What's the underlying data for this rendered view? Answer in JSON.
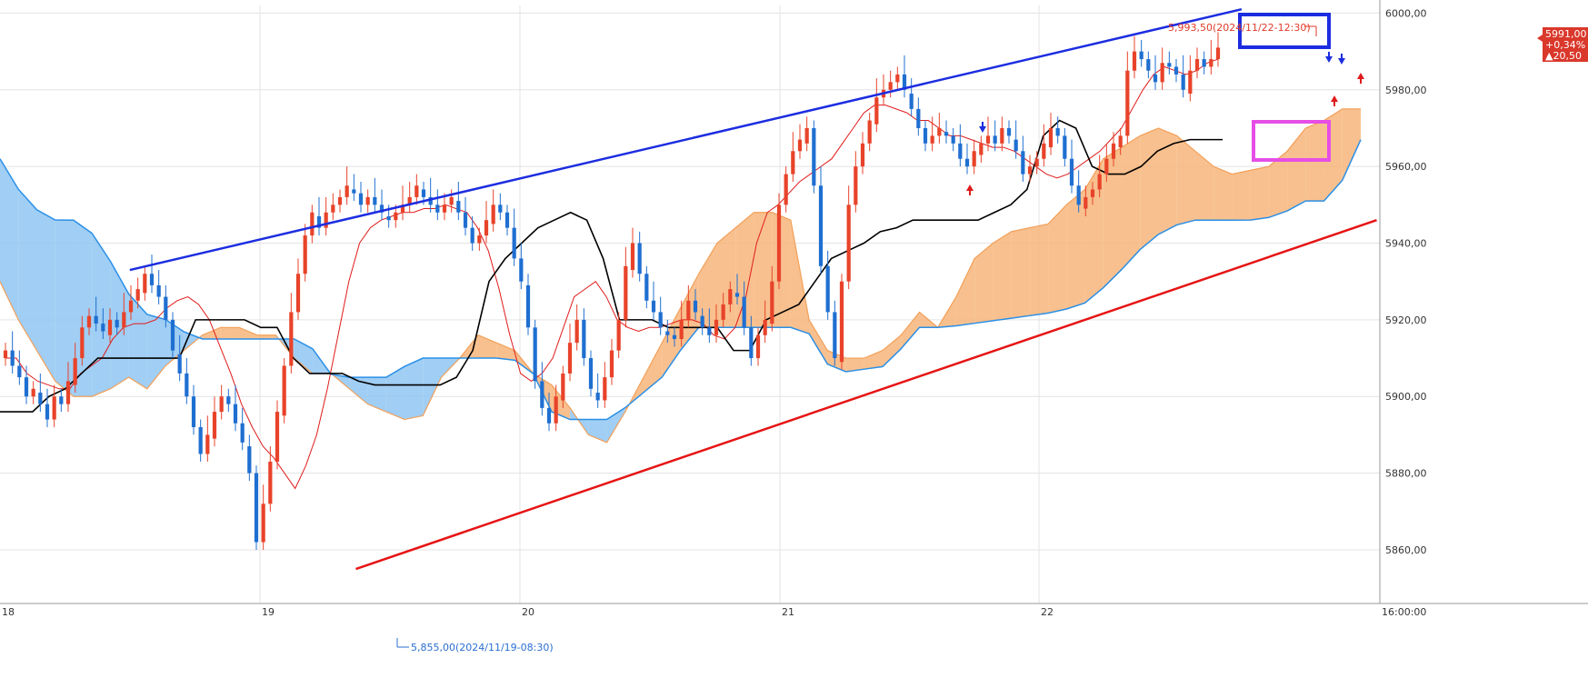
{
  "chart_data": {
    "type": "candlestick",
    "title": "",
    "y_range": [
      5846,
      6002
    ],
    "y_ticks": [
      "5860,00",
      "5880,00",
      "5900,00",
      "5920,00",
      "5940,00",
      "5960,00",
      "5980,00",
      "6000,00"
    ],
    "x_ticks": [
      "18",
      "19",
      "20",
      "21",
      "22",
      "16:00:00"
    ],
    "grid": true,
    "colors": {
      "up": "#e8432a",
      "down": "#1f6fd1",
      "cloud_bull": "#f7b57a",
      "cloud_bear": "#8fc6f2",
      "span_a": "#f2a05a",
      "span_b": "#2a8fe6",
      "kijun": "#000000",
      "tenkan": "#e01b1b",
      "upper_trend": "#1c2de0",
      "lower_trend": "#e61414",
      "highlight_top": "#1c2de0",
      "highlight_mid": "#e64ee6"
    },
    "candles_close": [
      5912,
      5908,
      5905,
      5900,
      5902,
      5898,
      5894,
      5900,
      5898,
      5904,
      5910,
      5918,
      5921,
      5919,
      5917,
      5920,
      5918,
      5922,
      5925,
      5928,
      5932,
      5929,
      5926,
      5920,
      5912,
      5906,
      5900,
      5892,
      5885,
      5890,
      5896,
      5900,
      5898,
      5893,
      5888,
      5880,
      5862,
      5872,
      5883,
      5896,
      5908,
      5922,
      5932,
      5942,
      5948,
      5944,
      5948,
      5950,
      5952,
      5955,
      5953,
      5950,
      5952,
      5950,
      5948,
      5946,
      5948,
      5950,
      5952,
      5955,
      5952,
      5950,
      5948,
      5950,
      5952,
      5948,
      5944,
      5940,
      5942,
      5946,
      5950,
      5948,
      5944,
      5936,
      5930,
      5918,
      5904,
      5897,
      5893,
      5900,
      5906,
      5914,
      5920,
      5910,
      5902,
      5899,
      5905,
      5912,
      5920,
      5934,
      5940,
      5932,
      5925,
      5922,
      5918,
      5916,
      5915,
      5920,
      5925,
      5922,
      5918,
      5916,
      5920,
      5924,
      5928,
      5926,
      5918,
      5910,
      5916,
      5920,
      5930,
      5950,
      5958,
      5964,
      5967,
      5970,
      5955,
      5934,
      5922,
      5910,
      5930,
      5950,
      5960,
      5966,
      5972,
      5978,
      5980,
      5982,
      5984,
      5980,
      5975,
      5970,
      5966,
      5968,
      5970,
      5968,
      5966,
      5962,
      5960,
      5964,
      5966,
      5968,
      5966,
      5970,
      5968,
      5964,
      5958,
      5960,
      5962,
      5966,
      5970,
      5968,
      5962,
      5955,
      5950,
      5952,
      5954,
      5958,
      5962,
      5966,
      5968,
      5985,
      5990,
      5988,
      5985,
      5982,
      5987,
      5986,
      5984,
      5980,
      5985,
      5988,
      5986,
      5988,
      5991
    ],
    "ichimoku": {
      "tenkan": [
        5910,
        5910,
        5906,
        5904,
        5903,
        5902,
        5902,
        5906,
        5908,
        5910,
        5915,
        5918,
        5919,
        5919,
        5920,
        5923,
        5925,
        5926,
        5924,
        5920,
        5913,
        5906,
        5898,
        5892,
        5887,
        5884,
        5880,
        5876,
        5882,
        5890,
        5902,
        5916,
        5930,
        5940,
        5944,
        5946,
        5947,
        5948,
        5948,
        5949,
        5949,
        5950,
        5949,
        5948,
        5944,
        5938,
        5928,
        5916,
        5906,
        5904,
        5906,
        5910,
        5918,
        5926,
        5928,
        5930,
        5926,
        5920,
        5918,
        5917,
        5918,
        5918,
        5919,
        5920,
        5920,
        5919,
        5916,
        5915,
        5918,
        5926,
        5940,
        5948,
        5950,
        5953,
        5956,
        5958,
        5960,
        5962,
        5966,
        5970,
        5974,
        5976,
        5976,
        5975,
        5974,
        5972,
        5972,
        5970,
        5968,
        5968,
        5967,
        5966,
        5965,
        5965,
        5964,
        5962,
        5960,
        5958,
        5957,
        5958,
        5960,
        5962,
        5964,
        5967,
        5970,
        5975,
        5980,
        5984,
        5986,
        5985,
        5984,
        5985,
        5987,
        5988
      ],
      "kijun": [
        5896,
        5896,
        5896,
        5900,
        5902,
        5906,
        5910,
        5910,
        5910,
        5910,
        5910,
        5910,
        5920,
        5920,
        5920,
        5920,
        5918,
        5918,
        5910,
        5906,
        5906,
        5906,
        5904,
        5903,
        5903,
        5903,
        5903,
        5903,
        5905,
        5912,
        5930,
        5936,
        5940,
        5944,
        5946,
        5948,
        5946,
        5936,
        5920,
        5920,
        5920,
        5918,
        5918,
        5918,
        5918,
        5912,
        5912,
        5920,
        5922,
        5924,
        5930,
        5936,
        5938,
        5940,
        5943,
        5944,
        5946,
        5946,
        5946,
        5946,
        5946,
        5948,
        5950,
        5954,
        5968,
        5972,
        5970,
        5960,
        5958,
        5958,
        5960,
        5964,
        5966,
        5967,
        5967,
        5967
      ],
      "span_a": [
        5930,
        5920,
        5912,
        5904,
        5900,
        5900,
        5902,
        5905,
        5902,
        5908,
        5912,
        5916,
        5918,
        5918,
        5916,
        5916,
        5910,
        5906,
        5906,
        5902,
        5898,
        5896,
        5894,
        5895,
        5905,
        5910,
        5916,
        5914,
        5912,
        5906,
        5903,
        5897,
        5890,
        5888,
        5896,
        5905,
        5914,
        5923,
        5932,
        5940,
        5944,
        5948,
        5948,
        5946,
        5920,
        5912,
        5910,
        5910,
        5912,
        5916,
        5922,
        5918,
        5926,
        5936,
        5940,
        5943,
        5944,
        5945,
        5950,
        5954,
        5962,
        5965,
        5968,
        5970,
        5968,
        5964,
        5960,
        5958,
        5959,
        5960,
        5964,
        5970,
        5972,
        5975,
        5975
      ],
      "span_b": [
        5962,
        5950,
        5946,
        5946,
        5935,
        5922,
        5920,
        5915,
        5915,
        5915,
        5915,
        5915,
        5905,
        5905,
        5905,
        5910,
        5910,
        5910,
        5910,
        5909,
        5894,
        5894,
        5894,
        5900,
        5906,
        5918,
        5918,
        5918,
        5918,
        5918,
        5906,
        5907,
        5908,
        5918,
        5918,
        5919,
        5920,
        5921,
        5922,
        5924,
        5930,
        5938,
        5944,
        5946,
        5946,
        5946,
        5947,
        5951,
        5951,
        5967
      ]
    },
    "upper_trendline": {
      "from": [
        18.5,
        5933
      ],
      "to": [
        22.78,
        6001
      ]
    },
    "lower_trendline": {
      "from": [
        19.37,
        5855
      ],
      "to": [
        23.3,
        5946
      ]
    },
    "last_price": {
      "value": "5991,00",
      "change_pct": "+0,34%",
      "change": "▲20,50"
    },
    "annotations": {
      "high_label": "5,993,50(2024/11/22-12:30)",
      "low_label": "5,855,00(2024/11/19-08:30)"
    }
  }
}
